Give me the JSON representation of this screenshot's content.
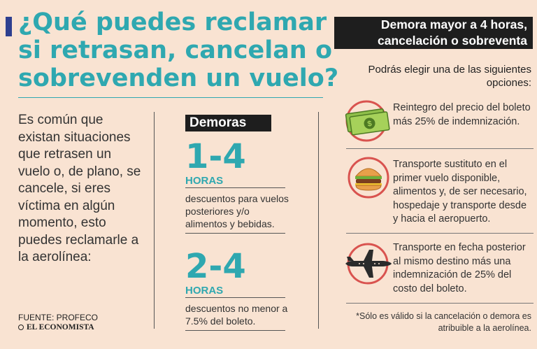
{
  "title": {
    "line1": "¿Qué puedes reclamar",
    "line2": "si retrasan, cancelan o",
    "line3": "sobrevenden un vuelo?"
  },
  "intro": "Es común que existan situaciones que retrasen un vuelo o, de plano, se cancele, si eres víctima en algún momento, esto puedes reclamarle a la aerolínea:",
  "source": "FUENTE: PROFECO",
  "logo": "EL ECONOMISTA",
  "delays": {
    "tag": "Demoras",
    "items": [
      {
        "range": "1-4",
        "unit": "HORAS",
        "desc": "descuentos para vuelos posteriores y/o alimentos y bebidas."
      },
      {
        "range": "2-4",
        "unit": "HORAS",
        "desc": "descuentos no menor a 7.5% del boleto."
      }
    ]
  },
  "major": {
    "header_line1": "Demora mayor a 4 horas,",
    "header_line2": "cancelación o sobreventa",
    "intro_line1": "Podrás elegir una de las siguientes",
    "intro_line2": "opciones:",
    "options": [
      {
        "icon": "money-icon",
        "lines": [
          "Reintegro del precio del boleto",
          "más 25% de indemnización."
        ]
      },
      {
        "icon": "burger-icon",
        "lines": [
          "Transporte sustituto en el",
          "primer vuelo disponible,",
          "alimentos y, de ser necesario,",
          "hospedaje y transporte desde",
          "y hacia el aeropuerto."
        ]
      },
      {
        "icon": "airplane-icon",
        "lines": [
          "Transporte en fecha posterior",
          "al mismo destino más una",
          "indemnización de 25% del",
          "costo del boleto."
        ]
      }
    ],
    "note_line1": "*Sólo es válido si la cancelación o demora es",
    "note_line2": "atribuible a la aerolínea."
  },
  "colors": {
    "accent": "#2fa8b0",
    "background": "#f9e3d2",
    "marker": "#2e3f8f",
    "circle": "#d9534f"
  }
}
